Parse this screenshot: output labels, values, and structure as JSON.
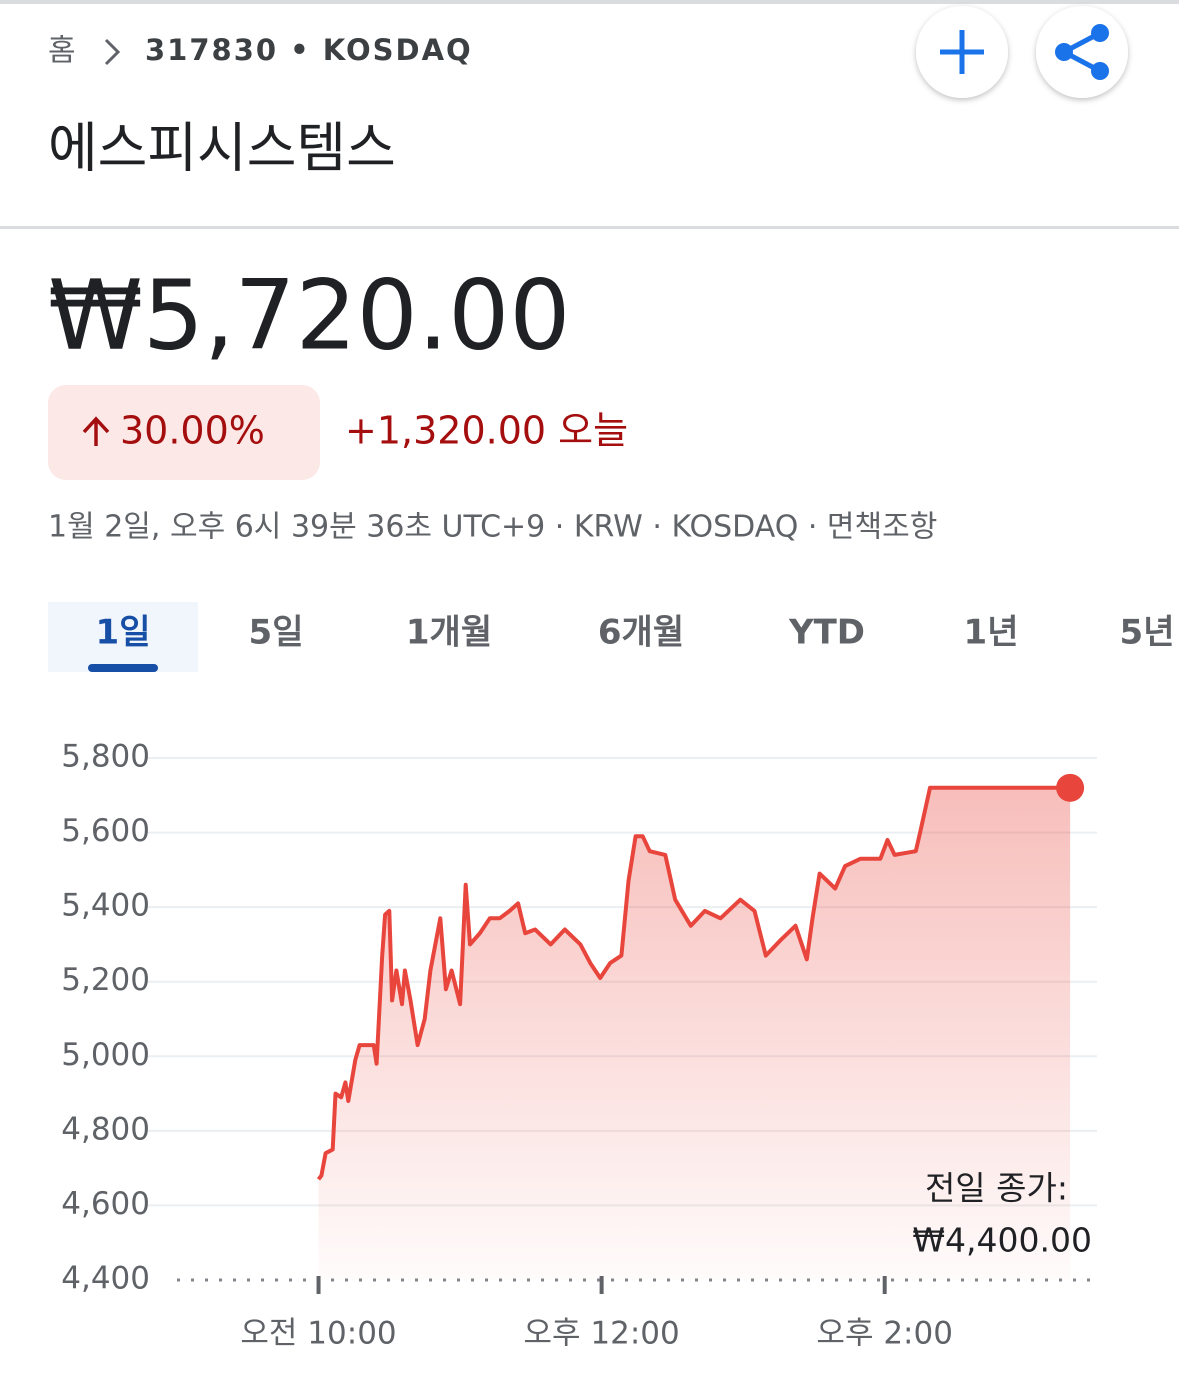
{
  "breadcrumb": {
    "home": "홈",
    "ticker": "317830 • KOSDAQ"
  },
  "title": "에스피시스템스",
  "price": "₩5,720.00",
  "change_percent": "30.00%",
  "change": "+1,320.00 오늘",
  "info": "1월 2일, 오후 6시 39분 36초 UTC+9 · KRW · KOSDAQ · 면책조항",
  "tabs": [
    "1일",
    "5일",
    "1개월",
    "6개월",
    "YTD",
    "1년",
    "5년"
  ],
  "chart_data": {
    "type": "line",
    "color": "#e8453c",
    "grid": true,
    "x": [
      10.0,
      10.02,
      10.05,
      10.1,
      10.12,
      10.16,
      10.19,
      10.21,
      10.26,
      10.29,
      10.39,
      10.41,
      10.45,
      10.47,
      10.5,
      10.52,
      10.55,
      10.59,
      10.61,
      10.65,
      10.7,
      10.75,
      10.79,
      10.86,
      10.9,
      10.94,
      11.0,
      11.04,
      11.07,
      11.14,
      11.21,
      11.28,
      11.35,
      11.41,
      11.46,
      11.53,
      11.64,
      11.74,
      11.85,
      11.92,
      11.99,
      12.06,
      12.14,
      12.19,
      12.24,
      12.29,
      12.34,
      12.45,
      12.52,
      12.63,
      12.73,
      12.84,
      12.98,
      13.08,
      13.16,
      13.26,
      13.37,
      13.45,
      13.49,
      13.54,
      13.65,
      13.72,
      13.83,
      13.97,
      14.02,
      14.07,
      14.22,
      14.25,
      14.32,
      15.31
    ],
    "values": [
      4670,
      4680,
      4740,
      4750,
      4900,
      4890,
      4930,
      4880,
      4990,
      5030,
      5030,
      4980,
      5270,
      5380,
      5390,
      5150,
      5230,
      5140,
      5230,
      5150,
      5030,
      5100,
      5230,
      5370,
      5180,
      5230,
      5140,
      5460,
      5300,
      5330,
      5370,
      5370,
      5390,
      5410,
      5330,
      5340,
      5300,
      5340,
      5300,
      5250,
      5210,
      5250,
      5270,
      5470,
      5590,
      5590,
      5550,
      5540,
      5420,
      5350,
      5390,
      5370,
      5420,
      5390,
      5270,
      5310,
      5350,
      5260,
      5370,
      5490,
      5450,
      5510,
      5530,
      5530,
      5580,
      5540,
      5550,
      5600,
      5720,
      5720
    ],
    "xlim": [
      9,
      15.5
    ],
    "xticks": [
      {
        "value": 10,
        "label": "오전 10:00"
      },
      {
        "value": 12,
        "label": "오후 12:00"
      },
      {
        "value": 14,
        "label": "오후 2:00"
      }
    ],
    "ylim": [
      4400,
      5800
    ],
    "yticks": [
      {
        "value": 4400,
        "label": "4,400"
      },
      {
        "value": 4600,
        "label": "4,600"
      },
      {
        "value": 4800,
        "label": "4,800"
      },
      {
        "value": 5000,
        "label": "5,000"
      },
      {
        "value": 5200,
        "label": "5,200"
      },
      {
        "value": 5400,
        "label": "5,400"
      },
      {
        "value": 5600,
        "label": "5,600"
      },
      {
        "value": 5800,
        "label": "5,800"
      }
    ],
    "previous_close_label": "전일 종가:",
    "previous_close": "₩4,400.00"
  }
}
